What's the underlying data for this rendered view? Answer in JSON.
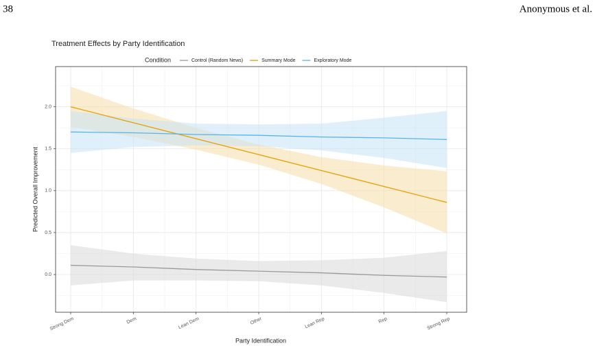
{
  "header": {
    "page_number": "38",
    "authors": "Anonymous et al."
  },
  "chart_data": {
    "type": "line",
    "title": "Treatment Effects by Party Identification",
    "legend_title": "Condition",
    "x_label": "Party Identification",
    "y_label": "Predicted Overall Improvement",
    "categories": [
      "Strong Dem",
      "Dem",
      "Lean Dem",
      "Other",
      "Lean Rep",
      "Rep",
      "Strong Rep"
    ],
    "series": [
      {
        "name": "Control (Random News)",
        "color": "#999999",
        "band_color": "#d9d9d9",
        "values": [
          0.11,
          0.09,
          0.06,
          0.04,
          0.02,
          -0.01,
          -0.03
        ],
        "lower": [
          -0.13,
          -0.07,
          -0.07,
          -0.08,
          -0.13,
          -0.22,
          -0.33
        ],
        "upper": [
          0.35,
          0.25,
          0.19,
          0.16,
          0.17,
          0.2,
          0.28
        ]
      },
      {
        "name": "Summary Mode",
        "color": "#e69f00",
        "band_color": "#f6dca8",
        "values": [
          2.0,
          1.81,
          1.62,
          1.43,
          1.24,
          1.05,
          0.86
        ],
        "lower": [
          1.76,
          1.64,
          1.49,
          1.31,
          1.08,
          0.8,
          0.49
        ],
        "upper": [
          2.24,
          1.98,
          1.75,
          1.55,
          1.4,
          1.3,
          1.23
        ]
      },
      {
        "name": "Exploratory Mode",
        "color": "#56b4e9",
        "band_color": "#c6e4f6",
        "values": [
          1.7,
          1.69,
          1.67,
          1.66,
          1.64,
          1.63,
          1.61
        ],
        "lower": [
          1.45,
          1.52,
          1.54,
          1.53,
          1.48,
          1.39,
          1.27
        ],
        "upper": [
          1.95,
          1.86,
          1.8,
          1.79,
          1.8,
          1.87,
          1.95
        ]
      }
    ],
    "ylim": [
      -0.45,
      2.48
    ],
    "yticks": [
      {
        "value": 0,
        "label": "0.0"
      },
      0.5,
      {
        "value": 1,
        "label": "1.0"
      },
      1.5,
      {
        "value": 2,
        "label": "2.0"
      }
    ],
    "grid": true,
    "legend_position": "top"
  }
}
